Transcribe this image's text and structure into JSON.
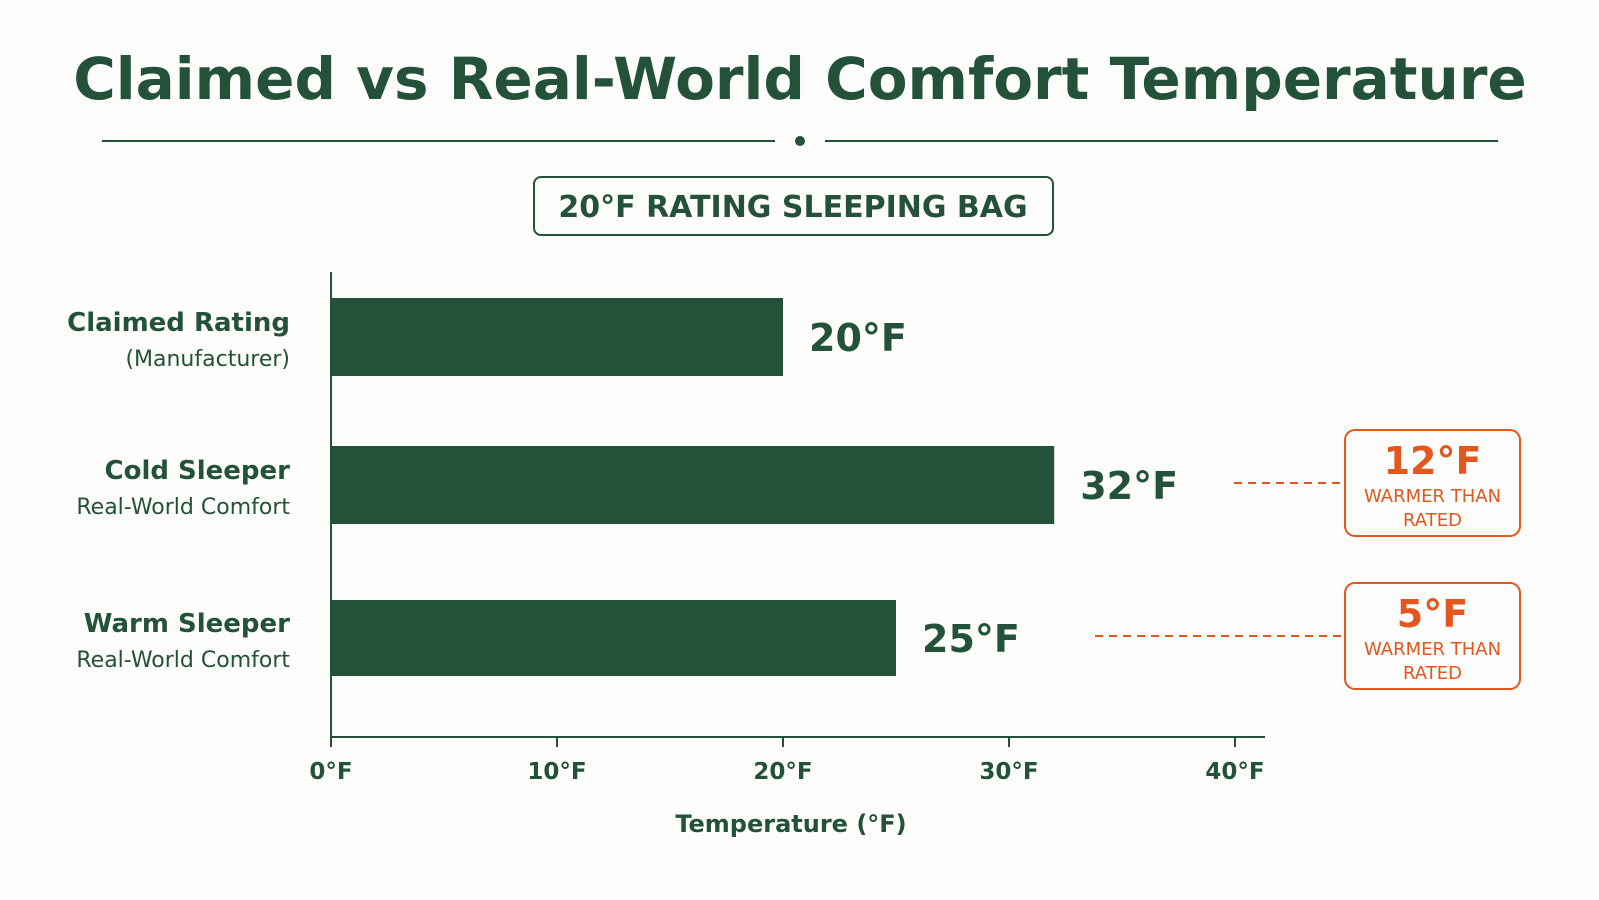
{
  "chart_data": {
    "type": "bar",
    "orientation": "horizontal",
    "title": "Claimed vs Real-World Comfort Temperature",
    "subtitle": "20°F RATING SLEEPING BAG",
    "xlabel": "Temperature (°F)",
    "ylabel": "",
    "xlim": [
      0,
      40
    ],
    "xticks": [
      "0°F",
      "10°F",
      "20°F",
      "30°F",
      "40°F"
    ],
    "xtick_values": [
      0,
      10,
      20,
      30,
      40
    ],
    "categories": [
      {
        "label": "Claimed Rating",
        "sublabel": "(Manufacturer)"
      },
      {
        "label": "Cold Sleeper",
        "sublabel": "Real-World Comfort"
      },
      {
        "label": "Warm Sleeper",
        "sublabel": "Real-World Comfort"
      }
    ],
    "values": [
      20,
      32,
      25
    ],
    "value_labels": [
      "20°F",
      "32°F",
      "25°F"
    ],
    "annotations": [
      {
        "category": "Cold Sleeper",
        "delta": "12°F",
        "text_line1": "WARMER THAN",
        "text_line2": "RATED"
      },
      {
        "category": "Warm Sleeper",
        "delta": "5°F",
        "text_line1": "WARMER THAN",
        "text_line2": "RATED"
      }
    ],
    "grid": false,
    "colors": {
      "bar": "#24513a",
      "text": "#24513a",
      "accent": "#e2571e",
      "axis": "#24513a"
    }
  }
}
